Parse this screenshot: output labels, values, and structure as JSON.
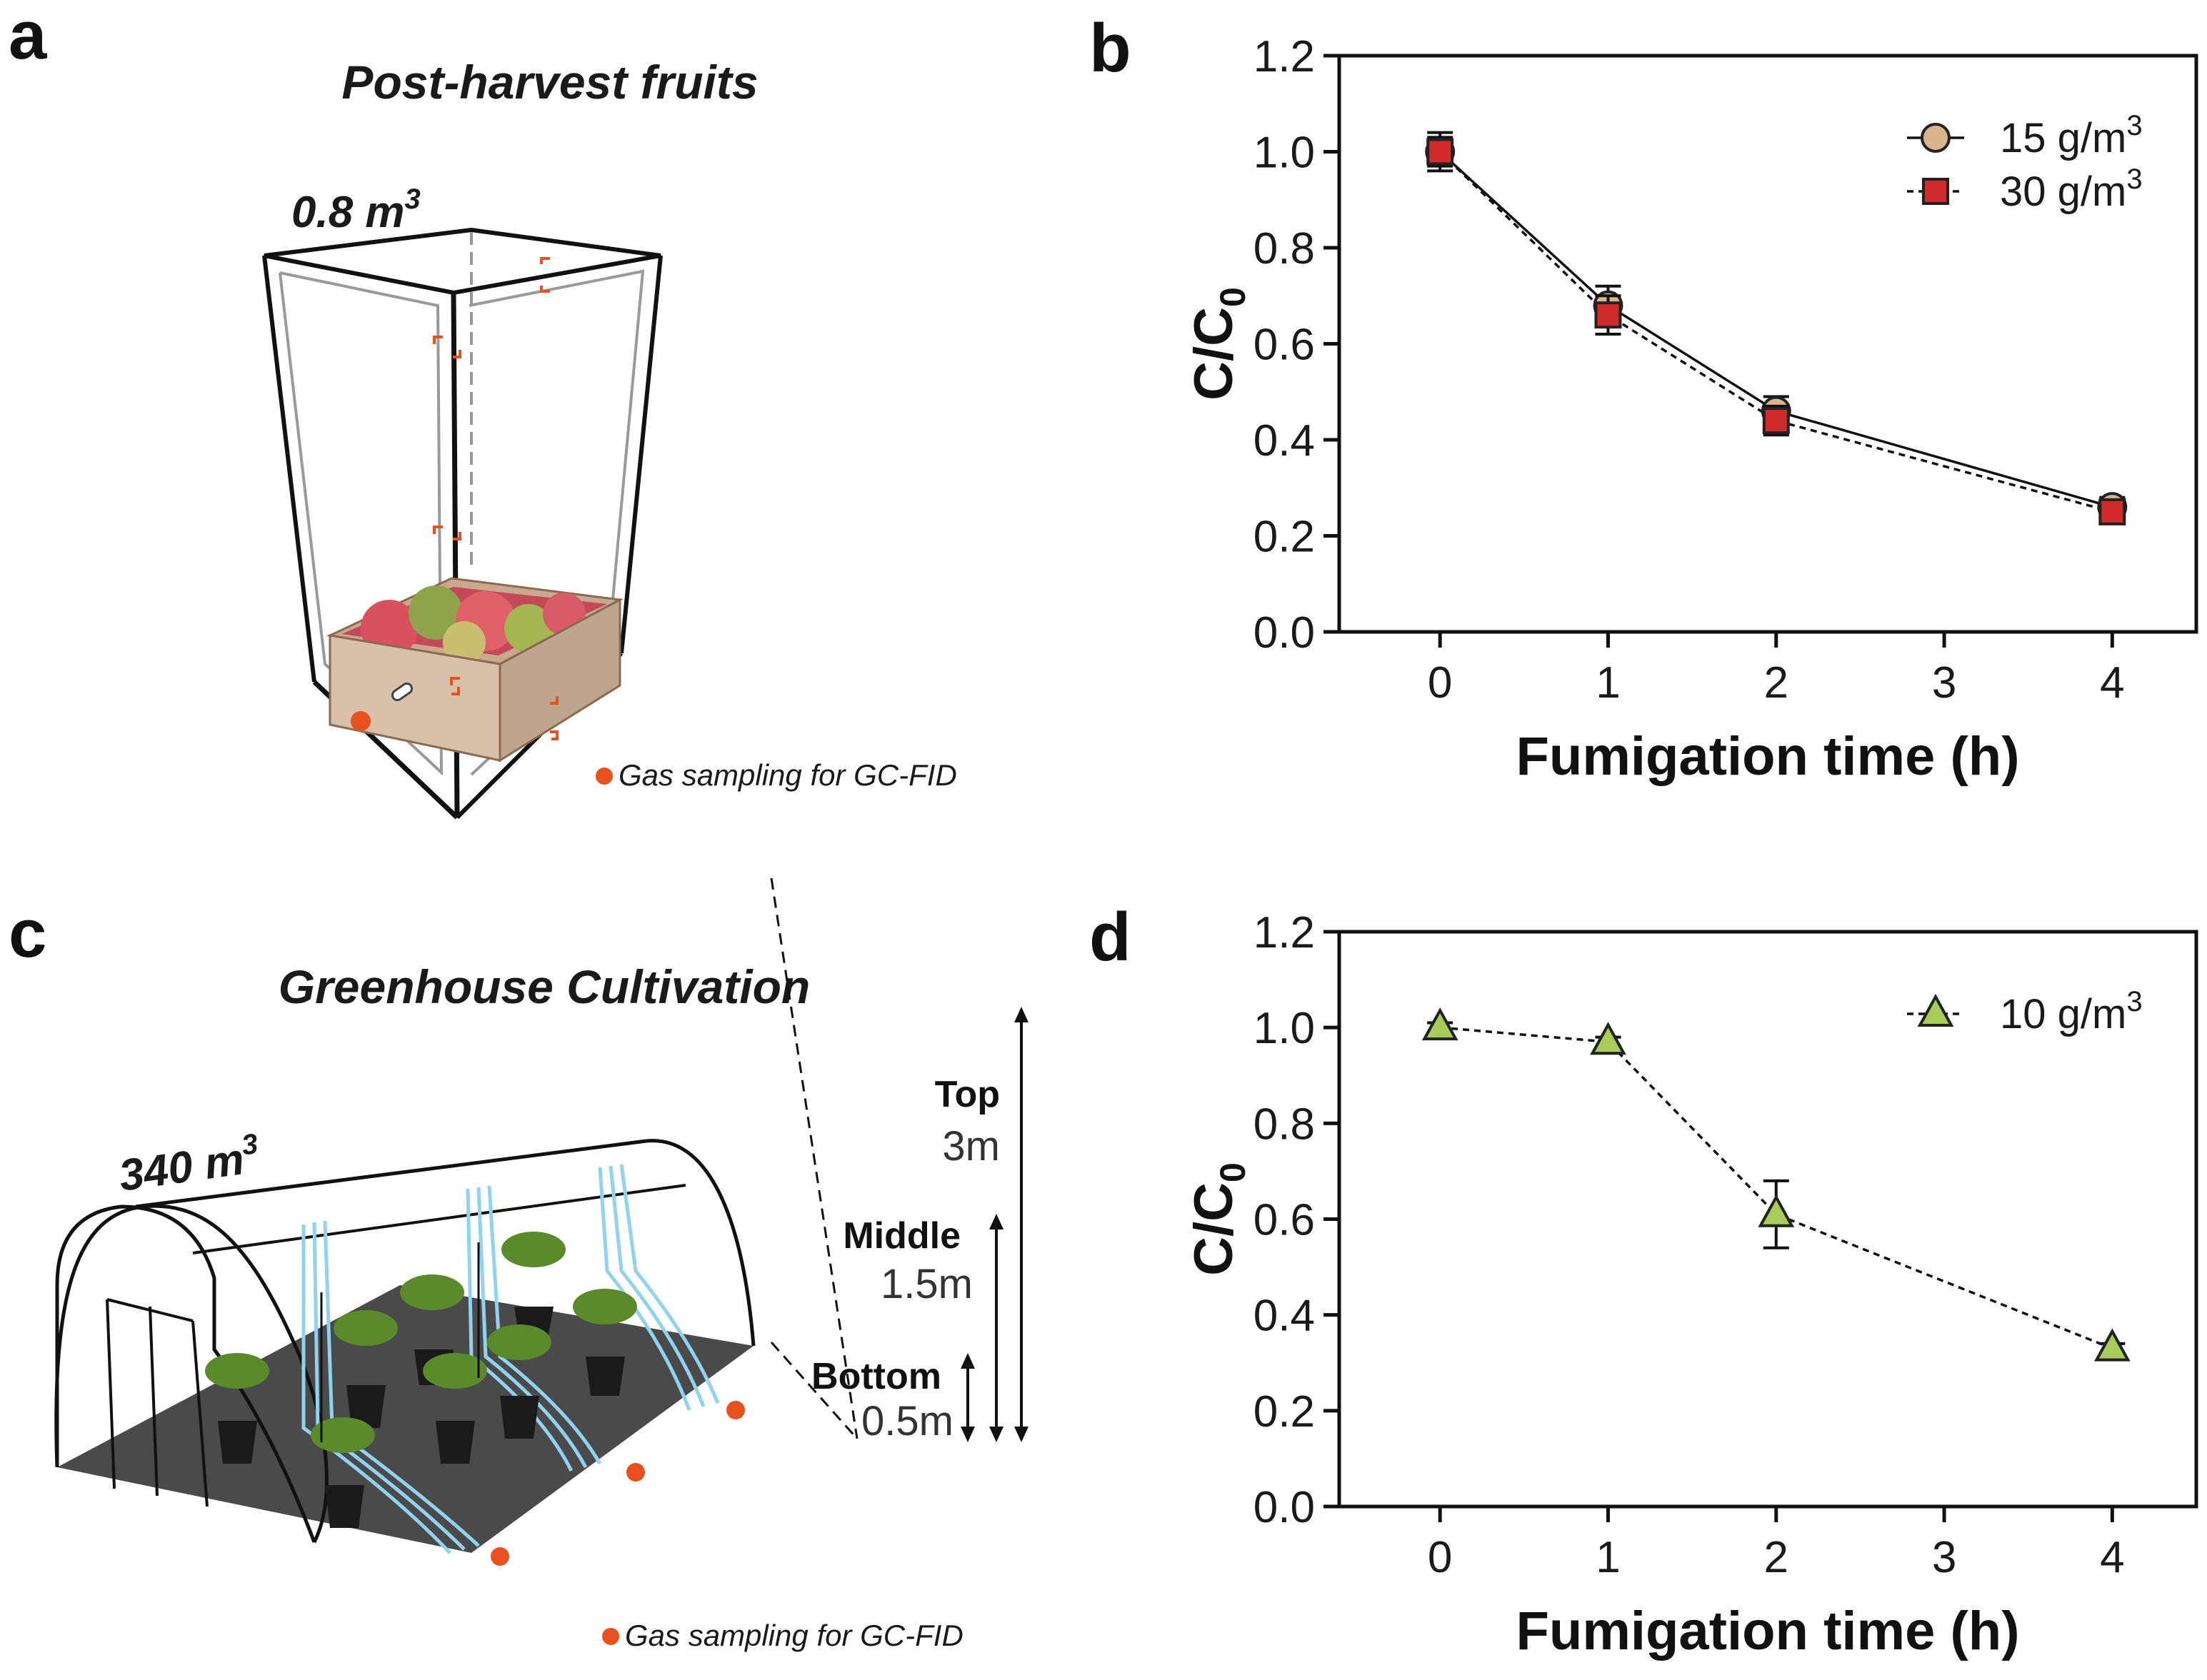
{
  "panels": {
    "a": {
      "letter": "a",
      "title": "Post-harvest fruits",
      "volume_base": "0.8 m",
      "volume_exp": "3",
      "note": "Gas sampling for GC-FID"
    },
    "c": {
      "letter": "c",
      "title": "Greenhouse Cultivation",
      "volume_base": "340 m",
      "volume_exp": "3",
      "note": "Gas sampling for GC-FID",
      "heights": [
        {
          "label": "Top",
          "value": "3m"
        },
        {
          "label": "Middle",
          "value": "1.5m"
        },
        {
          "label": "Bottom",
          "value": "0.5m"
        }
      ]
    }
  },
  "colors": {
    "circle_fill": "#d9b58c",
    "square_fill": "#d02a2a",
    "triangle_fill": "#a8cc5a",
    "sampling_dot": "#e8501e",
    "tube": "#8fd3f0"
  },
  "chart_data": [
    {
      "panel": "b",
      "type": "line",
      "xlabel": "Fumigation time (h)",
      "ylabel_base": "C/C",
      "ylabel_sub": "0",
      "x_ticks": [
        "0",
        "1",
        "2",
        "3",
        "4"
      ],
      "y_ticks": [
        "0.0",
        "0.2",
        "0.4",
        "0.6",
        "0.8",
        "1.0",
        "1.2"
      ],
      "xlim": [
        -0.6,
        4.5
      ],
      "ylim": [
        0,
        1.2
      ],
      "legend_position": "top-right",
      "series": [
        {
          "name_base": "15 g/m",
          "name_exp": "3",
          "marker": "circle",
          "line": "solid",
          "x": [
            0,
            1,
            2,
            4
          ],
          "y": [
            1.0,
            0.68,
            0.46,
            0.26
          ],
          "err": [
            0.04,
            0.04,
            0.03,
            0.02
          ]
        },
        {
          "name_base": "30 g/m",
          "name_exp": "3",
          "marker": "square",
          "line": "dashed",
          "x": [
            0,
            1,
            2,
            4
          ],
          "y": [
            1.0,
            0.66,
            0.44,
            0.25
          ],
          "err": [
            0.03,
            0.04,
            0.03,
            0.02
          ]
        }
      ]
    },
    {
      "panel": "d",
      "type": "line",
      "xlabel": "Fumigation time (h)",
      "ylabel_base": "C/C",
      "ylabel_sub": "0",
      "x_ticks": [
        "0",
        "1",
        "2",
        "3",
        "4"
      ],
      "y_ticks": [
        "0.0",
        "0.2",
        "0.4",
        "0.6",
        "0.8",
        "1.0",
        "1.2"
      ],
      "xlim": [
        -0.6,
        4.5
      ],
      "ylim": [
        0,
        1.2
      ],
      "legend_position": "top-right",
      "series": [
        {
          "name_base": "10 g/m",
          "name_exp": "3",
          "marker": "triangle",
          "line": "dashed",
          "x": [
            0,
            1,
            2,
            4
          ],
          "y": [
            1.0,
            0.97,
            0.61,
            0.33
          ],
          "err": [
            0.01,
            0.01,
            0.07,
            0.01
          ]
        }
      ]
    }
  ]
}
